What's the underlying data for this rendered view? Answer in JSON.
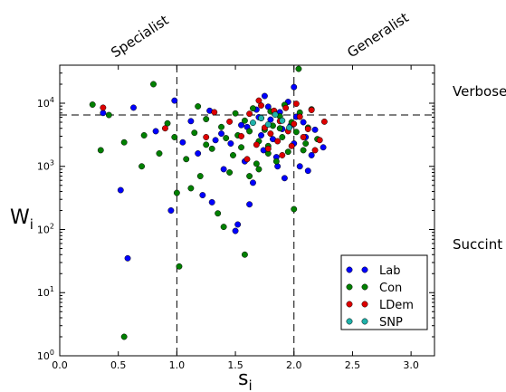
{
  "chart_data": {
    "type": "scatter",
    "xlabel": "s",
    "xlabel_sub": "i",
    "ylabel": "W",
    "ylabel_sub": "i",
    "xlim": [
      0.0,
      3.2
    ],
    "ylim": [
      1,
      40000
    ],
    "y_scale": "log",
    "x_ticks": [
      "0.0",
      "0.5",
      "1.0",
      "1.5",
      "2.0",
      "2.5",
      "3.0"
    ],
    "y_ticks": [
      {
        "base": "10",
        "exp": "0"
      },
      {
        "base": "10",
        "exp": "1"
      },
      {
        "base": "10",
        "exp": "2"
      },
      {
        "base": "10",
        "exp": "3"
      },
      {
        "base": "10",
        "exp": "4"
      }
    ],
    "reference_lines": {
      "vertical_x": [
        1.0,
        2.0
      ],
      "horizontal_y": 6500
    },
    "annotations": {
      "top_left": "Specialist",
      "top_right": "Generalist",
      "right_upper": "Verbose",
      "right_lower": "Succint"
    },
    "legend_position": "lower-right",
    "series": [
      {
        "name": "Lab",
        "color": "#0000ff",
        "points": [
          [
            0.37,
            7000
          ],
          [
            0.52,
            420
          ],
          [
            0.63,
            8500
          ],
          [
            0.58,
            35
          ],
          [
            0.82,
            3600
          ],
          [
            0.95,
            200
          ],
          [
            0.98,
            11000
          ],
          [
            1.05,
            2400
          ],
          [
            1.12,
            5200
          ],
          [
            1.18,
            1600
          ],
          [
            1.22,
            350
          ],
          [
            1.28,
            7600
          ],
          [
            1.33,
            2600
          ],
          [
            1.4,
            900
          ],
          [
            1.46,
            2300
          ],
          [
            1.5,
            95
          ],
          [
            1.55,
            4500
          ],
          [
            1.58,
            1200
          ],
          [
            1.6,
            4200
          ],
          [
            1.65,
            550
          ],
          [
            1.7,
            6000
          ],
          [
            1.72,
            3100
          ],
          [
            1.74,
            1800
          ],
          [
            1.78,
            8800
          ],
          [
            1.8,
            5500
          ],
          [
            1.82,
            2700
          ],
          [
            1.85,
            1400
          ],
          [
            1.88,
            7200
          ],
          [
            1.9,
            3900
          ],
          [
            1.92,
            650
          ],
          [
            1.95,
            10500
          ],
          [
            1.97,
            4400
          ],
          [
            2.0,
            2300
          ],
          [
            2.02,
            6100
          ],
          [
            2.05,
            1000
          ],
          [
            2.08,
            5000
          ],
          [
            2.1,
            2900
          ],
          [
            2.15,
            1500
          ],
          [
            2.18,
            3800
          ],
          [
            2.25,
            2000
          ],
          [
            1.3,
            270
          ],
          [
            1.62,
            250
          ],
          [
            1.52,
            120
          ],
          [
            1.38,
            3300
          ],
          [
            1.68,
            7900
          ],
          [
            1.86,
            1000
          ],
          [
            2.12,
            850
          ],
          [
            1.75,
            13000
          ],
          [
            2.0,
            18000
          ]
        ]
      },
      {
        "name": "Con",
        "color": "#008000",
        "points": [
          [
            0.28,
            9500
          ],
          [
            0.35,
            1800
          ],
          [
            0.42,
            6500
          ],
          [
            0.55,
            2
          ],
          [
            0.55,
            2400
          ],
          [
            0.7,
            1000
          ],
          [
            0.8,
            20000
          ],
          [
            0.85,
            1600
          ],
          [
            0.92,
            4800
          ],
          [
            1.0,
            380
          ],
          [
            1.02,
            26
          ],
          [
            1.08,
            1300
          ],
          [
            1.15,
            3400
          ],
          [
            1.2,
            700
          ],
          [
            1.25,
            5600
          ],
          [
            1.3,
            1900
          ],
          [
            1.35,
            180
          ],
          [
            1.38,
            4200
          ],
          [
            1.42,
            2800
          ],
          [
            1.45,
            800
          ],
          [
            1.5,
            6900
          ],
          [
            1.55,
            2000
          ],
          [
            1.58,
            40
          ],
          [
            1.62,
            3600
          ],
          [
            1.65,
            8300
          ],
          [
            1.68,
            1100
          ],
          [
            1.7,
            2500
          ],
          [
            1.72,
            5800
          ],
          [
            1.75,
            3800
          ],
          [
            1.78,
            1600
          ],
          [
            1.8,
            7400
          ],
          [
            1.82,
            4400
          ],
          [
            1.85,
            1200
          ],
          [
            1.88,
            6200
          ],
          [
            1.9,
            2900
          ],
          [
            1.92,
            9400
          ],
          [
            1.95,
            1700
          ],
          [
            1.98,
            5000
          ],
          [
            2.0,
            210
          ],
          [
            2.02,
            3500
          ],
          [
            2.05,
            7100
          ],
          [
            2.08,
            1800
          ],
          [
            2.12,
            4100
          ],
          [
            2.15,
            8000
          ],
          [
            2.2,
            2700
          ],
          [
            1.25,
            2200
          ],
          [
            1.48,
            1500
          ],
          [
            1.58,
            5300
          ],
          [
            1.62,
            700
          ],
          [
            1.78,
            2100
          ],
          [
            1.7,
            900
          ],
          [
            1.4,
            110
          ],
          [
            1.12,
            450
          ],
          [
            2.04,
            35000
          ],
          [
            0.72,
            3100
          ],
          [
            0.98,
            2900
          ],
          [
            1.18,
            8900
          ],
          [
            1.52,
            3100
          ],
          [
            1.88,
            4000
          ],
          [
            2.1,
            2300
          ]
        ]
      },
      {
        "name": "LDem",
        "color": "#dd0000",
        "points": [
          [
            0.37,
            8500
          ],
          [
            1.32,
            7200
          ],
          [
            1.45,
            5100
          ],
          [
            1.55,
            3000
          ],
          [
            1.62,
            6800
          ],
          [
            1.68,
            2200
          ],
          [
            1.72,
            9200
          ],
          [
            1.75,
            4100
          ],
          [
            1.78,
            1900
          ],
          [
            1.8,
            3300
          ],
          [
            1.83,
            7600
          ],
          [
            1.86,
            2500
          ],
          [
            1.88,
            5200
          ],
          [
            1.9,
            1500
          ],
          [
            1.93,
            8400
          ],
          [
            1.95,
            3600
          ],
          [
            1.98,
            2100
          ],
          [
            2.0,
            4700
          ],
          [
            2.05,
            6100
          ],
          [
            2.08,
            2900
          ],
          [
            2.12,
            3900
          ],
          [
            2.18,
            1800
          ],
          [
            2.22,
            2600
          ],
          [
            2.26,
            5100
          ],
          [
            1.6,
            1300
          ],
          [
            1.7,
            11000
          ],
          [
            2.02,
            9800
          ],
          [
            2.15,
            7800
          ],
          [
            0.9,
            4000
          ],
          [
            1.25,
            2900
          ]
        ]
      },
      {
        "name": "SNP",
        "color": "#20b2aa",
        "points": [
          [
            1.72,
            5800
          ],
          [
            1.78,
            4600
          ],
          [
            1.84,
            6600
          ],
          [
            1.9,
            5300
          ],
          [
            1.96,
            4100
          ],
          [
            1.65,
            4900
          ]
        ]
      }
    ]
  }
}
